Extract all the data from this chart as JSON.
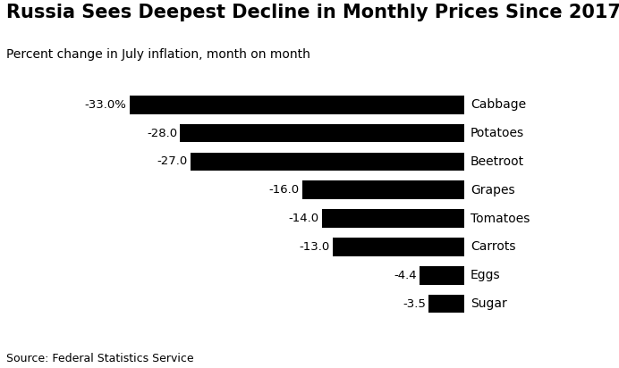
{
  "title": "Russia Sees Deepest Decline in Monthly Prices Since 2017",
  "subtitle": "Percent change in July inflation, month on month",
  "source": "Source: Federal Statistics Service",
  "categories": [
    "Cabbage",
    "Potatoes",
    "Beetroot",
    "Grapes",
    "Tomatoes",
    "Carrots",
    "Eggs",
    "Sugar"
  ],
  "values": [
    -33.0,
    -28.0,
    -27.0,
    -16.0,
    -14.0,
    -13.0,
    -4.4,
    -3.5
  ],
  "labels": [
    "-33.0%",
    "-28.0",
    "-27.0",
    "-16.0",
    "-14.0",
    "-13.0",
    "-4.4",
    "-3.5"
  ],
  "bar_color": "#000000",
  "background_color": "#ffffff",
  "title_fontsize": 15,
  "subtitle_fontsize": 10,
  "label_fontsize": 9.5,
  "category_fontsize": 10,
  "source_fontsize": 9,
  "bar_height": 0.65,
  "xlim_left": -36,
  "xlim_right": 0,
  "figsize": [
    6.92,
    4.12
  ],
  "dpi": 100
}
